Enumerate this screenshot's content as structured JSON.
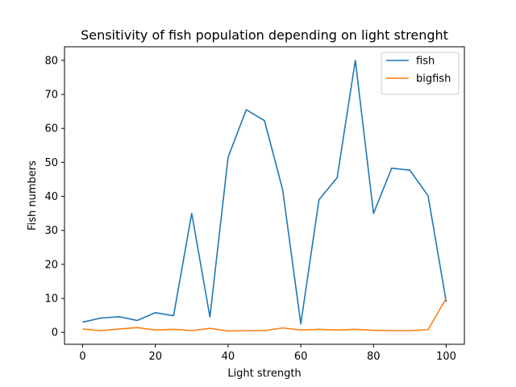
{
  "chart_data": {
    "type": "line",
    "title": "Sensitivity of fish population depending on light strenght",
    "xlabel": "Light strength",
    "ylabel": "Fish numbers",
    "xlim": [
      -5,
      105
    ],
    "ylim": [
      -3.5,
      84
    ],
    "xticks": [
      0,
      20,
      40,
      60,
      80,
      100
    ],
    "yticks": [
      0,
      10,
      20,
      30,
      40,
      50,
      60,
      70,
      80
    ],
    "grid": false,
    "legend_position": "top-right",
    "x": [
      0,
      5,
      10,
      15,
      20,
      25,
      30,
      35,
      40,
      45,
      50,
      55,
      60,
      65,
      70,
      75,
      80,
      85,
      90,
      95,
      100
    ],
    "series": [
      {
        "name": "fish",
        "color": "#1f77b4",
        "values": [
          3.0,
          4.2,
          4.6,
          3.5,
          5.8,
          4.9,
          35.0,
          4.5,
          51.5,
          65.5,
          62.3,
          42.0,
          2.5,
          39.0,
          45.5,
          80.0,
          35.0,
          48.3,
          47.7,
          40.2,
          9.0
        ]
      },
      {
        "name": "bigfish",
        "color": "#ff7f0e",
        "values": [
          1.0,
          0.5,
          1.0,
          1.4,
          0.7,
          0.9,
          0.5,
          1.2,
          0.4,
          0.5,
          0.5,
          1.3,
          0.7,
          0.9,
          0.7,
          0.9,
          0.6,
          0.5,
          0.5,
          0.8,
          10.0
        ]
      }
    ]
  }
}
